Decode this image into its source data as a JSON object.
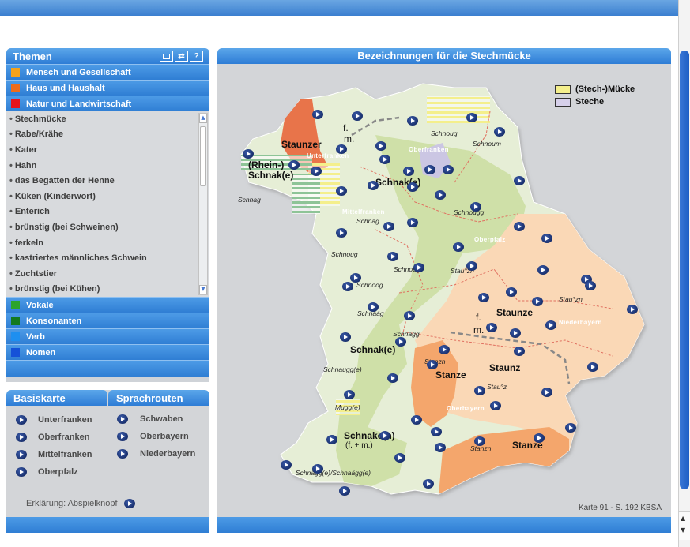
{
  "themes": {
    "title": "Themen",
    "icons": [
      "window-icon",
      "refresh-icon",
      "help-icon"
    ],
    "help_label": "?",
    "categories_top": [
      {
        "label": "Mensch und Gesellschaft",
        "color": "#f4a21c"
      },
      {
        "label": "Haus und Haushalt",
        "color": "#ef6b1a"
      },
      {
        "label": "Natur und Landwirtschaft",
        "color": "#e8141c"
      }
    ],
    "items": [
      "Stechmücke",
      "Rabe/Krähe",
      "Kater",
      "Hahn",
      "das Begatten der Henne",
      "Küken (Kinderwort)",
      "Enterich",
      "brünstig (bei Schweinen)",
      "ferkeln",
      "kastriertes männliches Schwein",
      "Zuchtstier",
      "brünstig (bei Kühen)"
    ],
    "categories_bottom": [
      {
        "label": "Vokale",
        "color": "#2ca42c"
      },
      {
        "label": "Konsonanten",
        "color": "#137a1e"
      },
      {
        "label": "Verb",
        "color": "#1e8ff0"
      },
      {
        "label": "Nomen",
        "color": "#1552d8"
      }
    ]
  },
  "basis": {
    "tab1": "Basiskarte",
    "tab2": "Sprachrouten",
    "col1": [
      "Unterfranken",
      "Oberfranken",
      "Mittelfranken",
      "Oberpfalz"
    ],
    "col2": [
      "Schwaben",
      "Oberbayern",
      "Niederbayern"
    ],
    "explain": "Erklärung: Abspielknopf"
  },
  "map": {
    "title": "Bezeichnungen für die Stechmücke",
    "legend": [
      {
        "label": "(Stech-)Mücke",
        "color": "#f4ef8c"
      },
      {
        "label": "Steche",
        "color": "#d6d0ea"
      }
    ],
    "footer": "Karte 91 - S. 192 KBSA",
    "regions": [
      "Unterfranken",
      "Oberfranken",
      "Mittelfranken",
      "Oberpfalz",
      "Niederbayern",
      "Oberbayern"
    ],
    "labels_big": [
      "Staunzer",
      "(Rhein-)",
      "Schnak(e)",
      "Schnak(e)",
      "Staunze",
      "Schnak(e)",
      "Stanze",
      "Staunz",
      "Schnake(n)",
      "Stanze",
      "f.",
      "m.",
      "f.",
      "m."
    ],
    "labels_small": [
      "Schnag",
      "Schnoug",
      "Schnoum",
      "Schnâg",
      "Schnoug",
      "Schnougg",
      "Schnoug",
      "Schnoog",
      "Stau°zn",
      "Schnâág",
      "Schnägg",
      "Stau°zn",
      "Stanzn",
      "Schnaugg(e)",
      "Stau°z",
      "Mugg(e)",
      "Stanzn",
      "Schnägg(e)/Schnaägg(e)"
    ],
    "label_fm": "(f. + m.)"
  },
  "colors": {
    "accent_blue": "#2e7dd6",
    "map_green_light": "#e6eed6",
    "map_green": "#cfe0a8",
    "map_orange_light": "#fad8b6",
    "map_orange": "#f4a66c",
    "map_red": "#e8744a",
    "map_purple": "#cbc6e3"
  }
}
